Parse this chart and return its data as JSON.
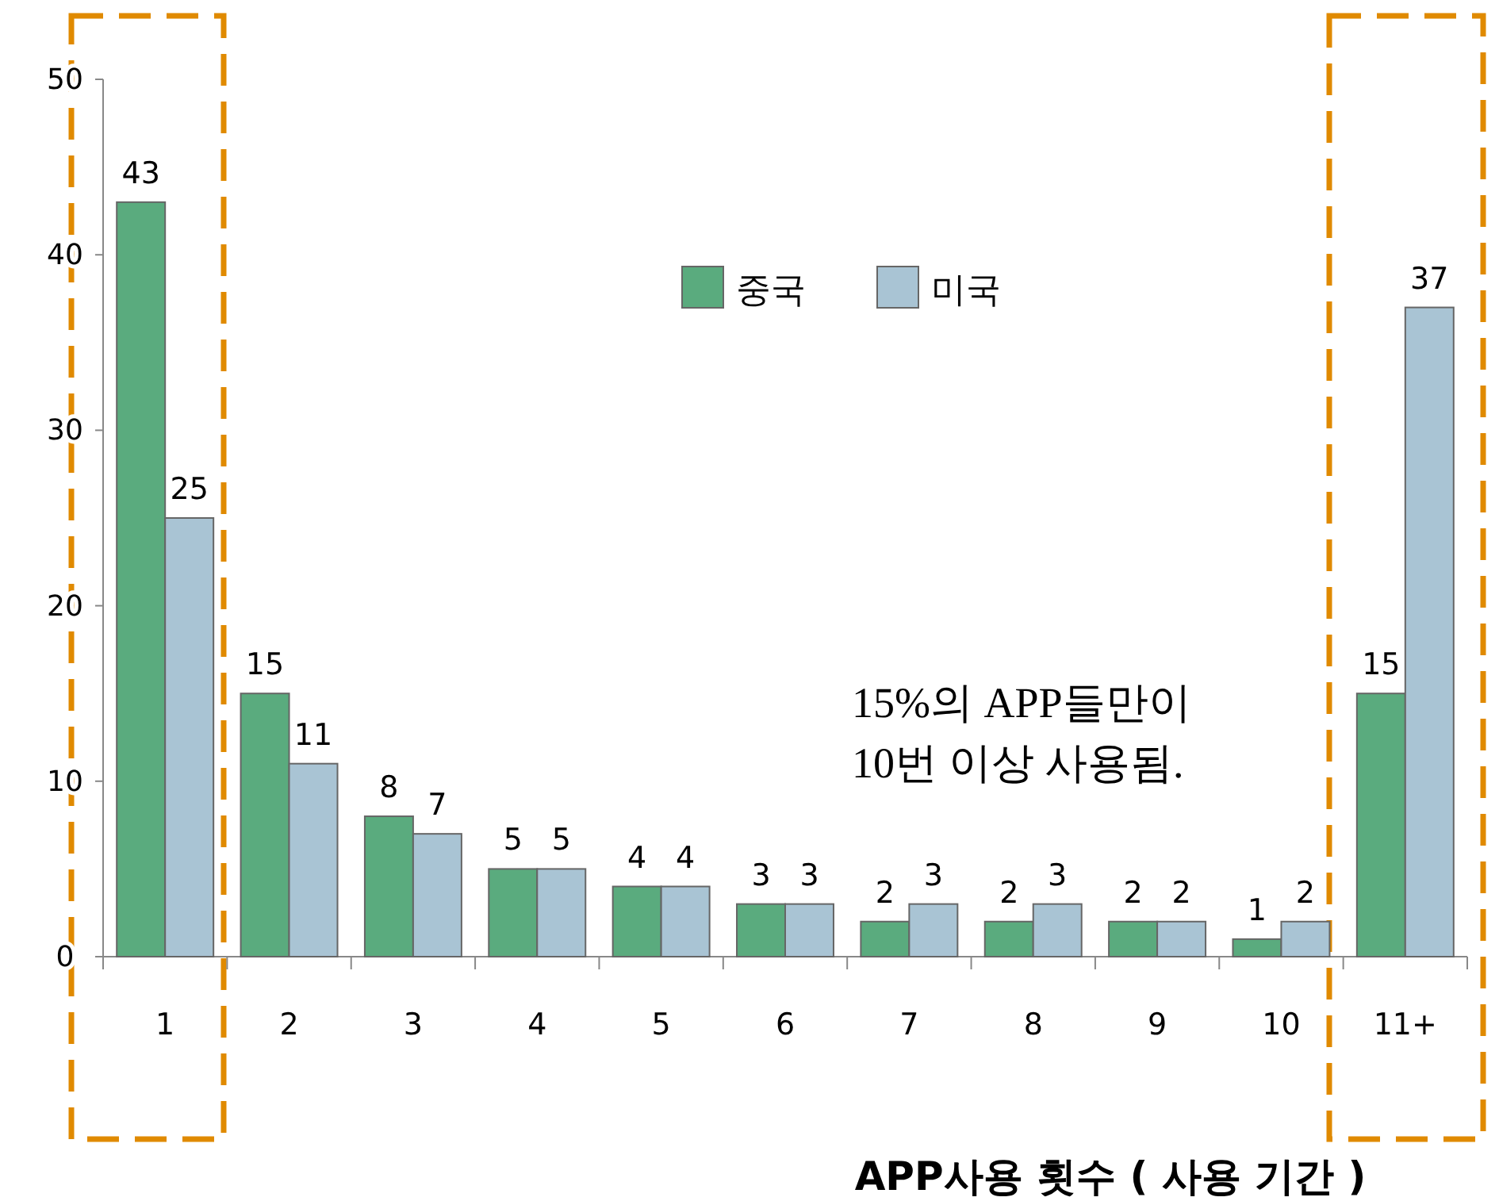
{
  "chart_data": {
    "type": "bar",
    "categories": [
      "1",
      "2",
      "3",
      "4",
      "5",
      "6",
      "7",
      "8",
      "9",
      "10",
      "11+"
    ],
    "series": [
      {
        "name": "중국",
        "color": "#5aab7e",
        "values": [
          43,
          15,
          8,
          5,
          4,
          3,
          2,
          2,
          2,
          1,
          15
        ]
      },
      {
        "name": "미국",
        "color": "#a9c4d4",
        "values": [
          25,
          11,
          7,
          5,
          4,
          3,
          3,
          3,
          2,
          2,
          37
        ]
      }
    ],
    "ylim": [
      0,
      50
    ],
    "yticks": [
      0,
      10,
      20,
      30,
      40,
      50
    ],
    "grid": false,
    "legend": "top",
    "data_labels": true,
    "xlabel": "APP사용 횟수 ( 사용 기간 )",
    "annotations": [
      "15%의 APP들만이\n10번 이상 사용됨."
    ]
  }
}
